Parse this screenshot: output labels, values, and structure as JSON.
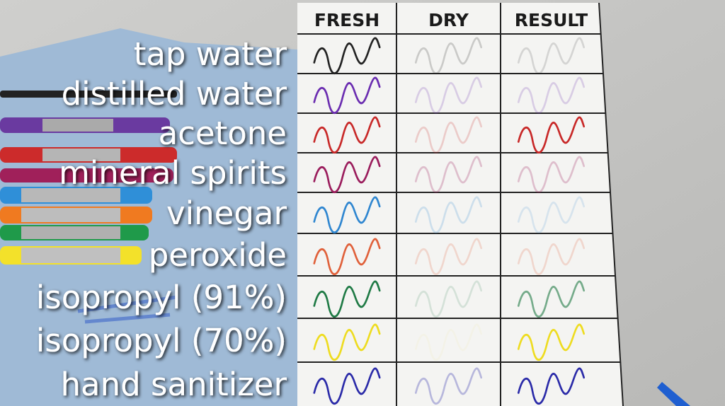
{
  "table": {
    "headers": [
      "FRESH",
      "DRY",
      "RESULT"
    ],
    "rows": [
      "tap water",
      "distilled water",
      "acetone",
      "mineral spirits",
      "vinegar",
      "peroxide",
      "isopropyl (91%)",
      "isopropyl (70%)",
      "hand sanitizer"
    ]
  }
}
